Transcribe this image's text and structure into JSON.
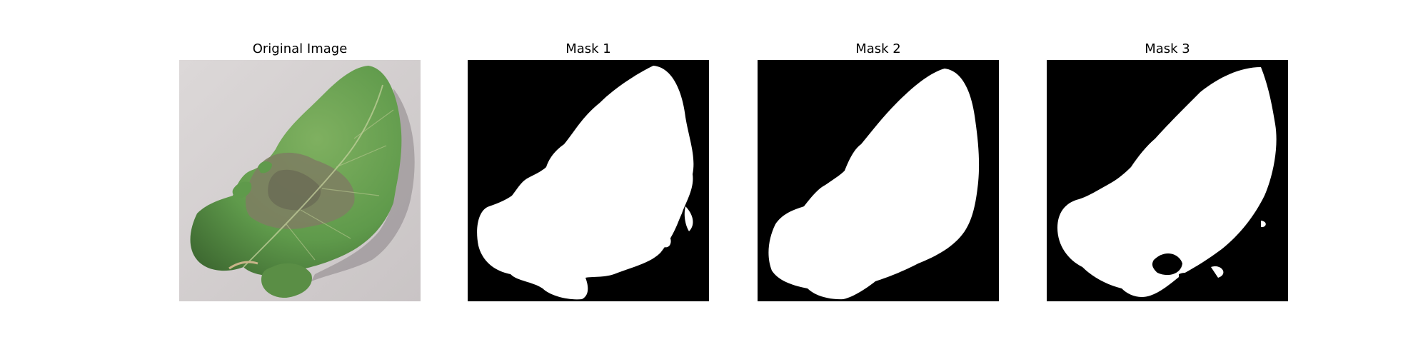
{
  "figure": {
    "panels": [
      {
        "title": "Original Image",
        "content": "leaf-photo"
      },
      {
        "title": "Mask 1",
        "content": "mask"
      },
      {
        "title": "Mask 2",
        "content": "mask"
      },
      {
        "title": "Mask 3",
        "content": "mask"
      }
    ]
  },
  "colors": {
    "mask_background": "#000000",
    "mask_foreground": "#ffffff",
    "leaf_green": "#5f9a4b",
    "leaf_dark": "#3f6b32",
    "lesion_gray": "#7d7f62",
    "ground": "#d8d4d3"
  }
}
